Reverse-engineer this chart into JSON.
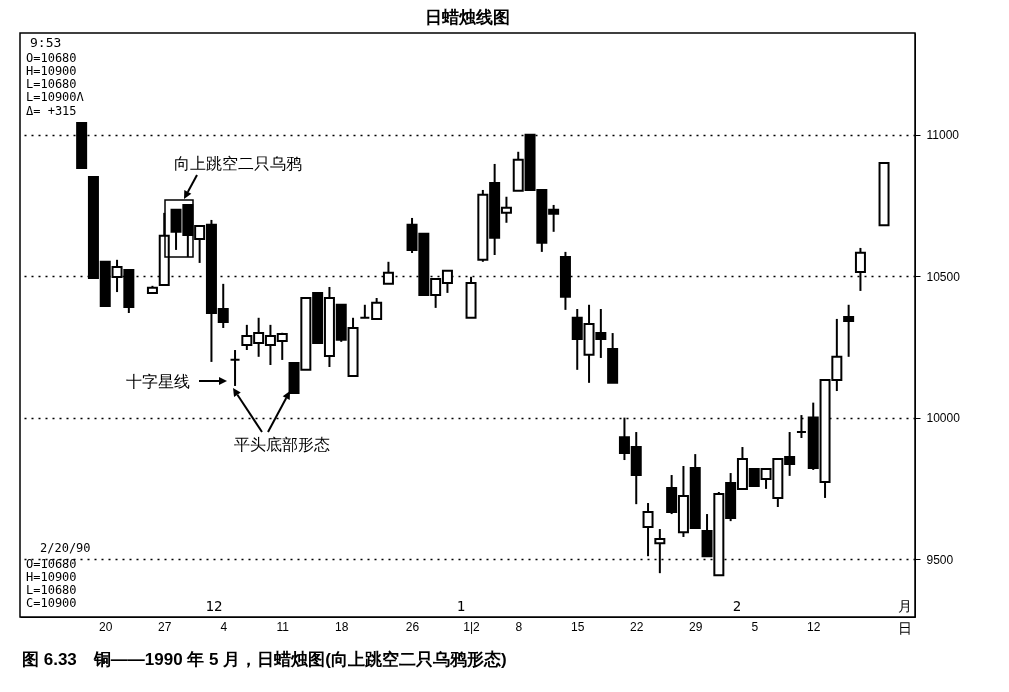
{
  "chart_data": {
    "type": "candlestick",
    "title": "日蜡烛线图",
    "categories": [
      null,
      null,
      "20",
      null,
      null,
      null,
      null,
      "27",
      null,
      null,
      null,
      null,
      "4",
      null,
      null,
      null,
      null,
      "11",
      null,
      null,
      null,
      null,
      "18",
      null,
      null,
      null,
      null,
      null,
      "26",
      null,
      null,
      null,
      null,
      "1|2",
      null,
      null,
      null,
      "8",
      null,
      null,
      null,
      null,
      "15",
      null,
      null,
      null,
      null,
      "22",
      null,
      null,
      null,
      null,
      "29",
      null,
      null,
      null,
      null,
      "5",
      null,
      null,
      null,
      null,
      "12",
      null,
      null,
      null,
      null,
      null,
      null
    ],
    "series": [
      {
        "color": "#000000",
        "ohlc": [
          [
            11042,
            11042,
            10883,
            10883
          ],
          [
            10851,
            10851,
            10494,
            10494
          ],
          [
            10551,
            10551,
            10395,
            10395
          ],
          [
            10497,
            10558,
            10444,
            10533
          ],
          [
            10522,
            10522,
            10370,
            10391
          ],
          null,
          [
            10441,
            10466,
            10441,
            10459
          ],
          [
            10469,
            10724,
            10469,
            10643
          ],
          [
            10735,
            10735,
            10593,
            10657
          ],
          [
            10752,
            10752,
            10568,
            10646
          ],
          [
            10632,
            10678,
            10547,
            10678
          ],
          [
            10682,
            10699,
            10197,
            10370
          ],
          [
            10384,
            10473,
            10317,
            10338
          ],
          [
            10205,
            10239,
            10112,
            10205
          ],
          [
            10257,
            10328,
            10239,
            10289
          ],
          [
            10264,
            10353,
            10215,
            10299
          ],
          [
            10257,
            10328,
            10186,
            10289
          ],
          [
            10271,
            10300,
            10204,
            10296
          ],
          [
            10193,
            10193,
            10087,
            10087
          ],
          [
            10169,
            10423,
            10169,
            10423
          ],
          [
            10441,
            10441,
            10264,
            10264
          ],
          [
            10218,
            10462,
            10179,
            10423
          ],
          [
            10399,
            10399,
            10268,
            10275
          ],
          [
            10147,
            10353,
            10147,
            10317
          ],
          [
            10353,
            10399,
            10353,
            10353
          ],
          [
            10349,
            10423,
            10349,
            10406
          ],
          [
            10473,
            10551,
            10473,
            10512
          ],
          null,
          [
            10682,
            10706,
            10582,
            10593
          ],
          [
            10650,
            10650,
            10434,
            10434
          ],
          [
            10434,
            10490,
            10388,
            10490
          ],
          [
            10476,
            10519,
            10441,
            10519
          ],
          null,
          [
            10353,
            10498,
            10353,
            10476
          ],
          [
            10558,
            10805,
            10551,
            10788
          ],
          [
            10830,
            10897,
            10575,
            10636
          ],
          [
            10724,
            10781,
            10689,
            10742
          ],
          [
            10802,
            10940,
            10802,
            10912
          ],
          [
            11000,
            11000,
            10805,
            10805
          ],
          [
            10805,
            10805,
            10586,
            10618
          ],
          [
            10735,
            10752,
            10657,
            10721
          ],
          [
            10568,
            10586,
            10381,
            10427
          ],
          [
            10353,
            10384,
            10169,
            10278
          ],
          [
            10222,
            10399,
            10123,
            10331
          ],
          [
            10299,
            10384,
            10211,
            10278
          ],
          [
            10243,
            10299,
            10123,
            10123
          ],
          [
            9931,
            10000,
            9850,
            9875
          ],
          [
            9896,
            9949,
            9694,
            9797
          ],
          [
            9613,
            9698,
            9510,
            9666
          ],
          [
            9556,
            9606,
            9450,
            9571
          ],
          [
            9751,
            9797,
            9659,
            9666
          ],
          [
            9595,
            9829,
            9578,
            9723
          ],
          [
            9822,
            9871,
            9610,
            9610
          ],
          [
            9599,
            9659,
            9510,
            9510
          ],
          [
            9443,
            9737,
            9443,
            9730
          ],
          [
            9769,
            9804,
            9634,
            9645
          ],
          [
            9748,
            9896,
            9748,
            9854
          ],
          [
            9818,
            9818,
            9758,
            9758
          ],
          [
            9783,
            9818,
            9748,
            9818
          ],
          [
            9716,
            9854,
            9684,
            9854
          ],
          [
            9861,
            9949,
            9794,
            9836
          ],
          [
            9949,
            10009,
            9928,
            9949
          ],
          [
            10000,
            10053,
            9815,
            9822
          ],
          [
            9772,
            10133,
            9716,
            10133
          ],
          [
            10133,
            10349,
            10094,
            10215
          ],
          [
            10356,
            10399,
            10215,
            10342
          ],
          [
            10515,
            10600,
            10448,
            10583
          ],
          null,
          [
            10680,
            10900,
            10680,
            10900
          ]
        ]
      }
    ],
    "ylim": [
      9295,
      11360
    ],
    "yticks": [
      9500,
      10000,
      10500,
      11000
    ],
    "grid": "y",
    "annotations": [
      "9:53",
      "O=10680",
      "H=10900",
      "L=10680",
      "L=10900Λ",
      "Δ=  +315",
      "2/20/90",
      "O=10680",
      "H=10900",
      "L=10680",
      "C=10900",
      "12",
      "1",
      "2",
      "月",
      "日",
      "向上跳空二只乌鸦",
      "十字星线",
      "平头底部形态",
      "图 6.33　铜——1990 年 5 月，日蜡烛图(向上跳空二只乌鸦形态)"
    ]
  }
}
